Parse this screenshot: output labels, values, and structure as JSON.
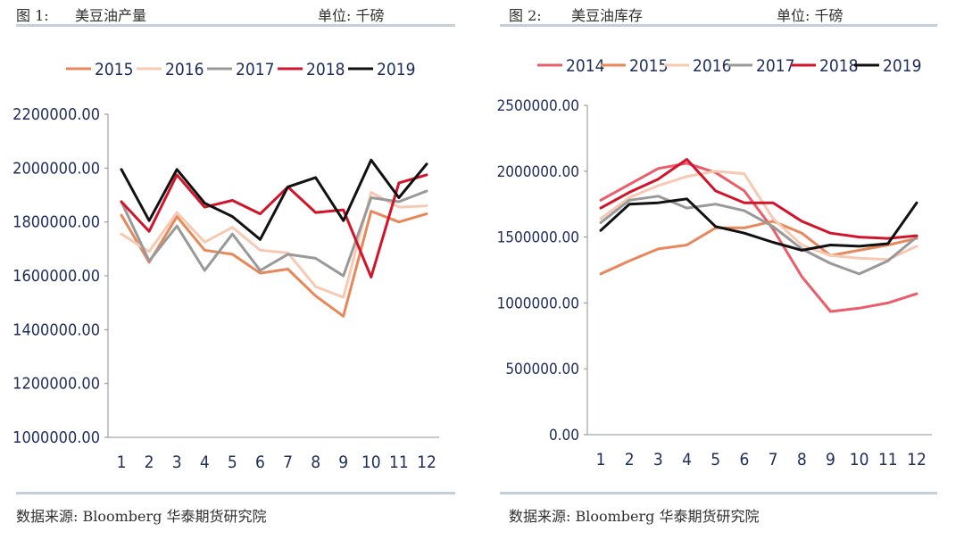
{
  "panels": {
    "left": {
      "fig_label": "图 1:",
      "title": "美豆油产量",
      "unit": "单位: 千磅",
      "source": "数据来源: Bloomberg 华泰期货研究院"
    },
    "right": {
      "fig_label": "图 2:",
      "title": "美豆油库存",
      "unit": "单位: 千磅",
      "source": "数据来源: Bloomberg 华泰期货研究院"
    }
  },
  "chart_data": [
    {
      "type": "line",
      "title": "美豆油产量",
      "x": [
        "1",
        "2",
        "3",
        "4",
        "5",
        "6",
        "7",
        "8",
        "9",
        "10",
        "11",
        "12"
      ],
      "ylim": [
        1000000,
        2200000
      ],
      "yticks": [
        "1000000.00",
        "1200000.00",
        "1400000.00",
        "1600000.00",
        "1800000.00",
        "2000000.00",
        "2200000.00"
      ],
      "legend_position": "top",
      "series": [
        {
          "name": "2015",
          "color": "#e8875a",
          "values": [
            1825000,
            1650000,
            1820000,
            1695000,
            1680000,
            1610000,
            1625000,
            1525000,
            1450000,
            1840000,
            1800000,
            1830000
          ]
        },
        {
          "name": "2016",
          "color": "#f8c9b2",
          "values": [
            1755000,
            1690000,
            1835000,
            1725000,
            1780000,
            1695000,
            1685000,
            1560000,
            1520000,
            1910000,
            1855000,
            1860000
          ]
        },
        {
          "name": "2017",
          "color": "#999999",
          "values": [
            1875000,
            1655000,
            1785000,
            1620000,
            1755000,
            1620000,
            1680000,
            1665000,
            1600000,
            1890000,
            1875000,
            1915000
          ]
        },
        {
          "name": "2018",
          "color": "#d2142b",
          "values": [
            1875000,
            1765000,
            1975000,
            1855000,
            1880000,
            1830000,
            1930000,
            1835000,
            1845000,
            1595000,
            1945000,
            1975000
          ]
        },
        {
          "name": "2019",
          "color": "#111111",
          "values": [
            1995000,
            1805000,
            1995000,
            1870000,
            1820000,
            1735000,
            1930000,
            1965000,
            1805000,
            2030000,
            1890000,
            2015000
          ]
        }
      ]
    },
    {
      "type": "line",
      "title": "美豆油库存",
      "x": [
        "1",
        "2",
        "3",
        "4",
        "5",
        "6",
        "7",
        "8",
        "9",
        "10",
        "11",
        "12"
      ],
      "ylim": [
        0,
        2500000
      ],
      "yticks": [
        "0.00",
        "500000.00",
        "1000000.00",
        "1500000.00",
        "2000000.00",
        "2500000.00"
      ],
      "legend_position": "top",
      "series": [
        {
          "name": "2014",
          "color": "#ea5d6b",
          "values": [
            1780000,
            1900000,
            2020000,
            2060000,
            1990000,
            1850000,
            1560000,
            1200000,
            935000,
            960000,
            1000000,
            1070000
          ]
        },
        {
          "name": "2015",
          "color": "#e8875a",
          "values": [
            1220000,
            1320000,
            1410000,
            1440000,
            1570000,
            1570000,
            1620000,
            1530000,
            1360000,
            1400000,
            1440000,
            1490000
          ]
        },
        {
          "name": "2016",
          "color": "#f8c9b2",
          "values": [
            1640000,
            1800000,
            1890000,
            1960000,
            2000000,
            1980000,
            1640000,
            1440000,
            1360000,
            1340000,
            1330000,
            1430000
          ]
        },
        {
          "name": "2017",
          "color": "#999999",
          "values": [
            1610000,
            1780000,
            1810000,
            1720000,
            1750000,
            1700000,
            1580000,
            1410000,
            1300000,
            1220000,
            1320000,
            1500000
          ]
        },
        {
          "name": "2018",
          "color": "#d2142b",
          "values": [
            1720000,
            1840000,
            1940000,
            2090000,
            1850000,
            1760000,
            1760000,
            1620000,
            1530000,
            1500000,
            1490000,
            1510000
          ]
        },
        {
          "name": "2019",
          "color": "#111111",
          "values": [
            1550000,
            1750000,
            1760000,
            1790000,
            1580000,
            1530000,
            1460000,
            1400000,
            1440000,
            1430000,
            1450000,
            1760000
          ]
        }
      ]
    }
  ]
}
